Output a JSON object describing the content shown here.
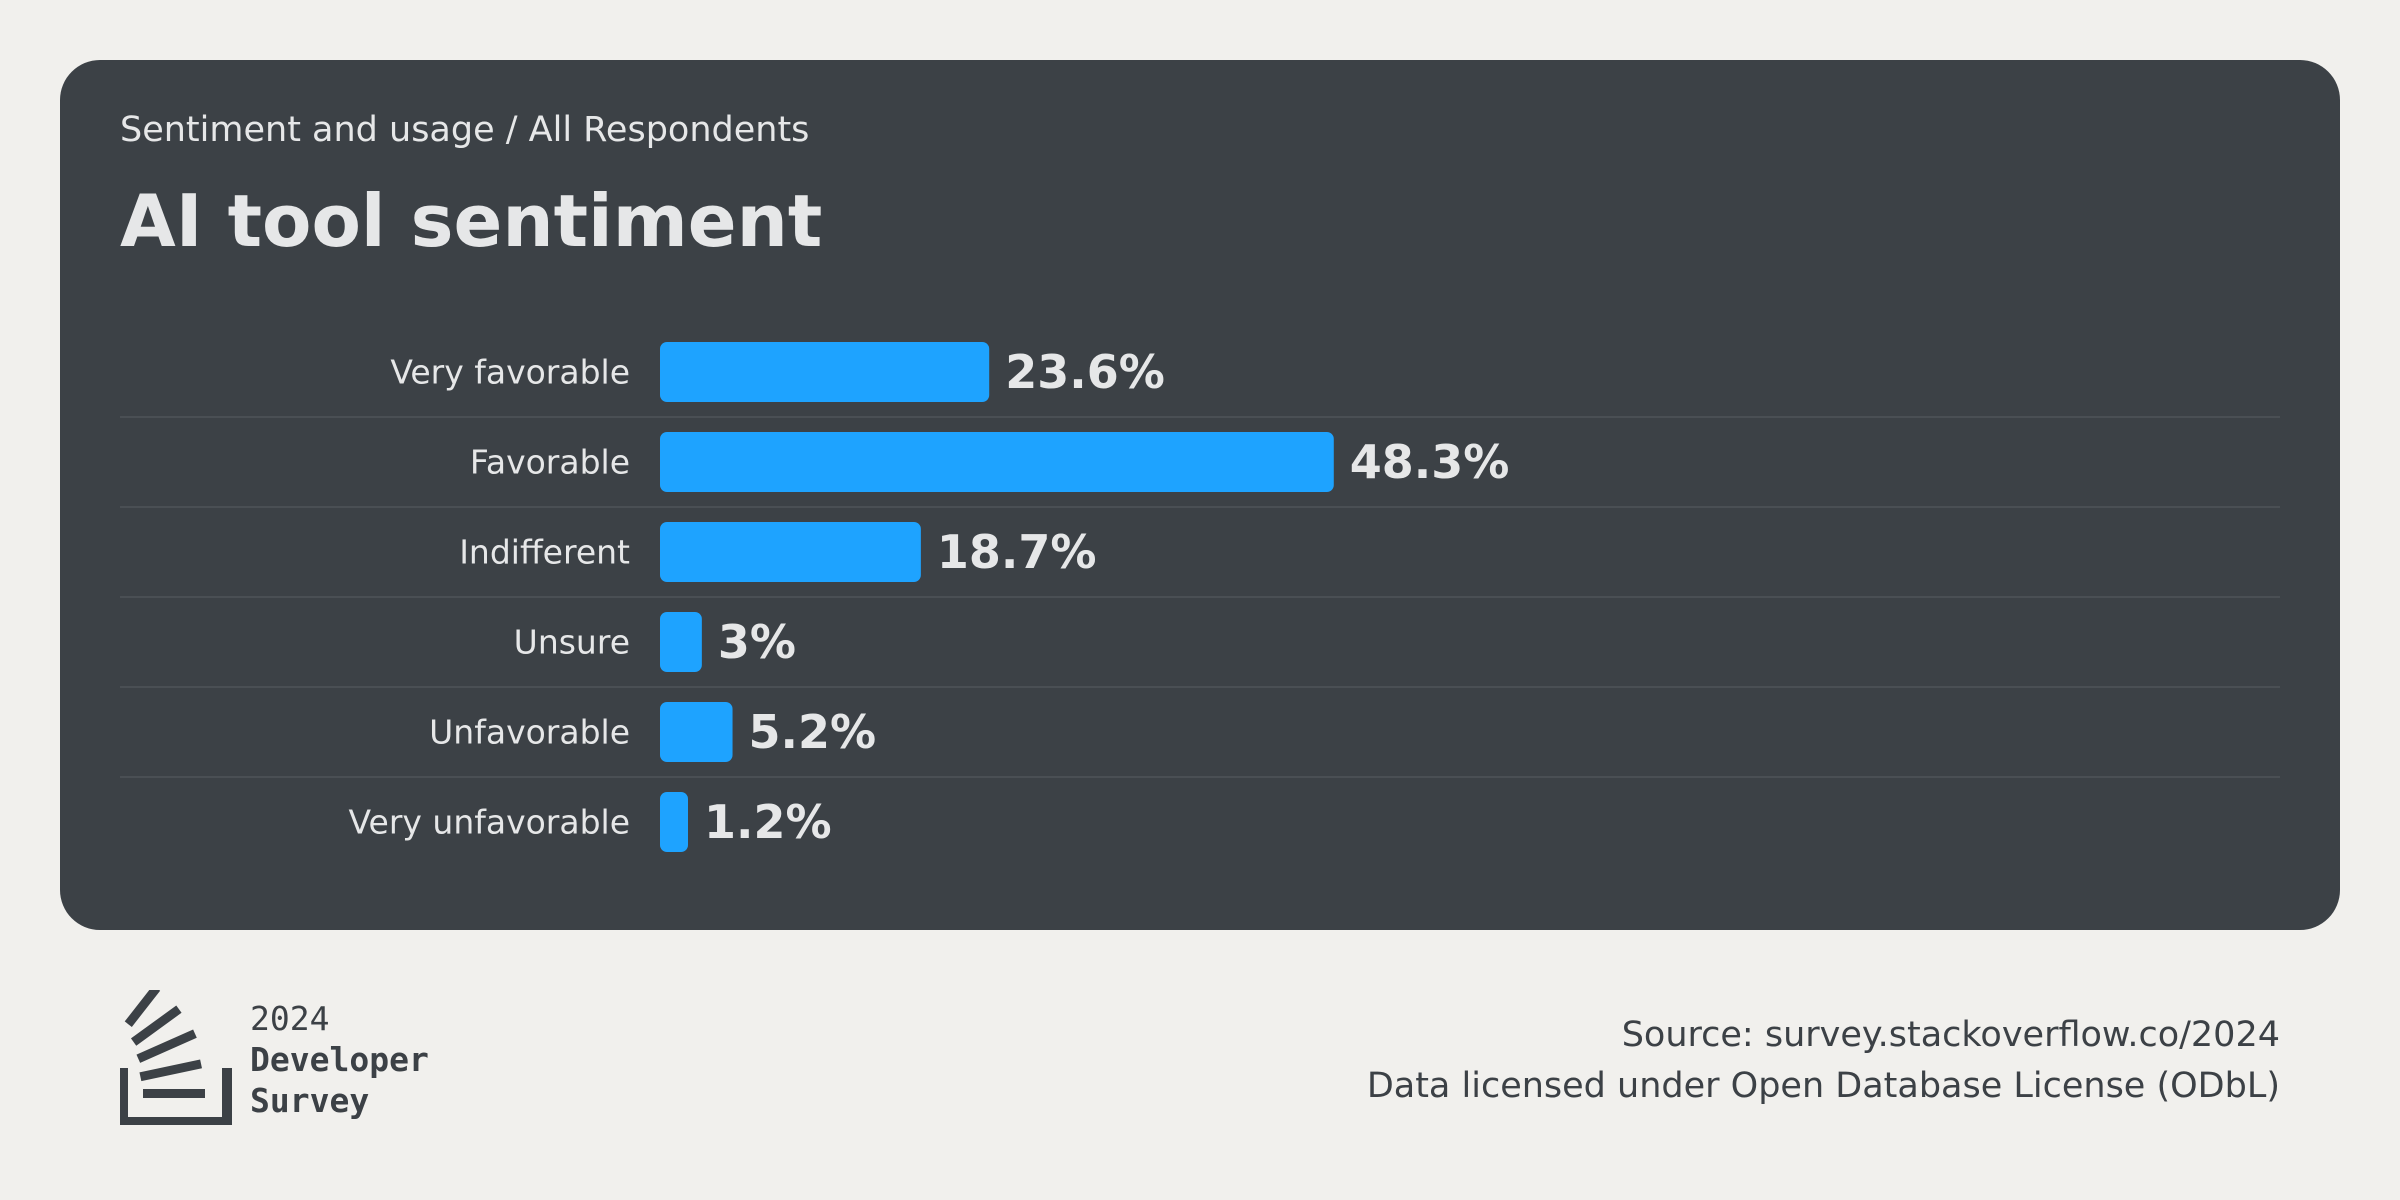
{
  "header": {
    "breadcrumb": "Sentiment and usage / All Respondents",
    "title": "AI tool sentiment"
  },
  "chart_data": {
    "type": "bar",
    "orientation": "horizontal",
    "title": "AI tool sentiment",
    "categories": [
      "Very favorable",
      "Favorable",
      "Indifferent",
      "Unsure",
      "Unfavorable",
      "Very unfavorable"
    ],
    "values": [
      23.6,
      48.3,
      18.7,
      3,
      5.2,
      1.2
    ],
    "value_labels": [
      "23.6%",
      "48.3%",
      "18.7%",
      "3%",
      "5.2%",
      "1.2%"
    ],
    "unit": "%",
    "xlim": [
      0,
      100
    ],
    "grid": false,
    "legend": "none",
    "bar_color": "#1ea3ff"
  },
  "footer": {
    "logo": {
      "icon": "stackoverflow-logo-icon",
      "year": "2024",
      "line1": "Developer",
      "line2": "Survey"
    },
    "source": "Source: survey.stackoverflow.co/2024",
    "license": "Data licensed under Open Database License (ODbL)"
  },
  "colors": {
    "page_background": "#f1f0ed",
    "card_background": "#3c4146",
    "text_light": "#e6e7e8",
    "text_dark": "#3c4146",
    "bar": "#1ea3ff",
    "divider": "#4a4f54"
  }
}
